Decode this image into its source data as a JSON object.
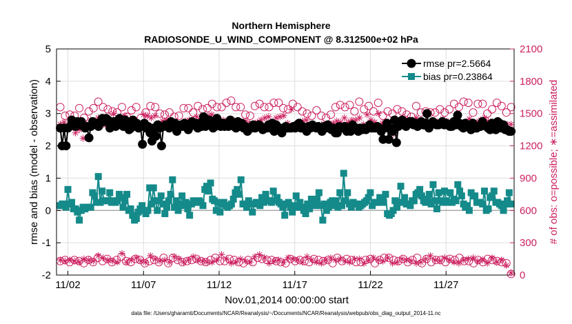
{
  "chart_data": {
    "type": "line",
    "title": "Northern Hemisphere",
    "subtitle": "RADIOSONDE_U_WIND_COMPONENT @ 8.312500e+02 hPa",
    "xlabel": "Nov.01,2014 00:00:00 start",
    "ylabel": "rmse and bias (model - observation)",
    "y2label": "# of obs: o=possible; ∗=assimilated",
    "x_ticks": [
      1.5,
      6.5,
      11.5,
      16.5,
      21.5,
      26.5
    ],
    "x_tick_labels": [
      "11/02",
      "11/07",
      "11/12",
      "11/17",
      "11/22",
      "11/27"
    ],
    "xlim": [
      0.75,
      31.0
    ],
    "ylim": [
      -2,
      5
    ],
    "y_ticks": [
      -2,
      -1,
      0,
      1,
      2,
      3,
      4,
      5
    ],
    "y_tick_labels": [
      "-2",
      "-1",
      "0",
      "1",
      "2",
      "3",
      "4",
      "5"
    ],
    "y2lim": [
      0,
      2100
    ],
    "y2_ticks": [
      0,
      300,
      600,
      900,
      1200,
      1500,
      1800,
      2100
    ],
    "y2_tick_labels": [
      "0",
      "300",
      "600",
      "900",
      "1200",
      "1500",
      "1800",
      "2100"
    ],
    "grid": true,
    "legend_position": "top-right",
    "colors": {
      "rmse": "#000000",
      "bias": "#158a8a",
      "obs": "#cc2060",
      "zero_line": "#aaaaaa",
      "grid": "#dddddd"
    },
    "series": [
      {
        "name": "rmse pr=2.5664",
        "axis": "left",
        "style": "line-filled-circle",
        "values": [
          2.55,
          2.0,
          2.55,
          2.0,
          2.55,
          2.6,
          2.8,
          2.7,
          2.6,
          2.75,
          2.65,
          2.75,
          2.6,
          2.55,
          2.6,
          2.25,
          2.6,
          2.75,
          2.7,
          2.7,
          2.6,
          2.7,
          2.85,
          2.75,
          2.85,
          2.8,
          2.55,
          2.6,
          2.75,
          2.6,
          2.75,
          2.85,
          2.75,
          2.6,
          2.8,
          2.65,
          2.5,
          2.55,
          2.8,
          2.65,
          2.7,
          2.55,
          2.6,
          2.05,
          2.7,
          2.55,
          2.6,
          2.4,
          2.15,
          2.55,
          2.3,
          2.65,
          2.55,
          2.0,
          2.6,
          2.65,
          2.6,
          2.55,
          2.75,
          2.65,
          2.7,
          2.45,
          2.6,
          2.65,
          2.6,
          2.7,
          2.65,
          2.5,
          2.6,
          2.75,
          2.65,
          2.7,
          2.55,
          2.7,
          2.6,
          2.9,
          2.6,
          2.65,
          2.8,
          2.65,
          2.55,
          2.6,
          2.85,
          2.65,
          2.6,
          2.7,
          2.6,
          2.7,
          2.6,
          2.8,
          2.7,
          2.6,
          2.55,
          2.75,
          2.6,
          2.7,
          2.55,
          2.6,
          2.45,
          2.55,
          2.55,
          2.65,
          2.55,
          2.6,
          2.65,
          2.6,
          2.5,
          2.55,
          2.55,
          2.65,
          2.55,
          2.7,
          2.45,
          2.65,
          2.5,
          2.55,
          2.4,
          2.55,
          2.6,
          2.55,
          2.55,
          2.55,
          2.6,
          2.55,
          2.65,
          2.7,
          2.55,
          2.6,
          2.55,
          2.45,
          2.6,
          2.55,
          2.65,
          2.6,
          2.55,
          2.6,
          2.55,
          2.45,
          2.6,
          2.55,
          2.65,
          2.55,
          2.5,
          2.55,
          2.4,
          2.4,
          2.6,
          2.55,
          2.55,
          2.6,
          2.45,
          2.55,
          2.45,
          2.65,
          2.55,
          2.55,
          2.45,
          2.55,
          2.5,
          2.55,
          2.5,
          2.55,
          2.65,
          2.55,
          2.55,
          2.55,
          2.6,
          2.55,
          2.45,
          2.2,
          2.55,
          2.7,
          2.2,
          2.55,
          2.45,
          2.8,
          2.1,
          2.6,
          2.65,
          2.8,
          2.7,
          2.6,
          2.7,
          2.75,
          2.75,
          2.65,
          2.7,
          2.6,
          2.7,
          2.75,
          2.65,
          2.7,
          3.0,
          2.55,
          2.65,
          2.75,
          2.7,
          2.65,
          2.65,
          2.7,
          2.75,
          2.65,
          2.7,
          2.65,
          2.6,
          2.6,
          2.75,
          2.65,
          2.95,
          2.7,
          2.6,
          2.55,
          2.7,
          2.65,
          2.6,
          2.5,
          2.7,
          2.55,
          2.55,
          2.6,
          2.6,
          2.75,
          2.65,
          2.6,
          2.55,
          2.5,
          2.7,
          2.6,
          2.5,
          2.75,
          2.7,
          2.55,
          2.65,
          2.5,
          2.5,
          2.45,
          2.45
        ]
      },
      {
        "name": "bias pr=0.23864",
        "axis": "left",
        "style": "line-filled-square",
        "values": [
          0.15,
          0.2,
          0.2,
          0.1,
          0.65,
          0.2,
          0.25,
          0.05,
          0.05,
          -0.05,
          -0.3,
          0.0,
          0.1,
          0.05,
          0.1,
          0.1,
          0.1,
          0.55,
          0.45,
          0.25,
          1.05,
          0.25,
          0.6,
          0.3,
          0.3,
          0.3,
          0.55,
          0.25,
          0.3,
          0.25,
          0.3,
          0.5,
          0.4,
          0.1,
          0.3,
          0.5,
          0.0,
          0.05,
          -0.15,
          -0.3,
          -0.25,
          -0.05,
          0.05,
          0.15,
          0.0,
          -0.1,
          0.0,
          0.7,
          0.2,
          0.7,
          0.3,
          0.0,
          0.3,
          0.45,
          0.2,
          -0.1,
          0.1,
          0.3,
          0.5,
          0.95,
          0.1,
          0.3,
          0.0,
          0.2,
          0.45,
          0.15,
          0.25,
          0.05,
          -0.15,
          0.2,
          0.3,
          0.25,
          0.25,
          0.3,
          0.25,
          0.15,
          0.65,
          0.75,
          0.6,
          0.85,
          0.35,
          0.3,
          0.0,
          0.25,
          -0.05,
          0.2,
          0.25,
          0.15,
          0.1,
          0.15,
          0.2,
          0.35,
          0.55,
          0.65,
          0.5,
          0.95,
          0.2,
          0.2,
          0.1,
          0.3,
          0.2,
          -0.05,
          0.2,
          0.25,
          0.25,
          0.15,
          0.4,
          0.25,
          0.5,
          0.3,
          0.3,
          0.25,
          0.6,
          0.3,
          0.4,
          0.25,
          0.2,
          0.1,
          -0.15,
          0.2,
          0.25,
          0.1,
          -0.05,
          0.15,
          0.45,
          0.1,
          0.25,
          0.1,
          0.0,
          -0.1,
          0.2,
          0.05,
          0.35,
          0.25,
          0.15,
          0.35,
          0.55,
          0.15,
          -0.3,
          0.2,
          0.0,
          0.1,
          0.25,
          0.3,
          0.15,
          0.3,
          0.1,
          0.55,
          0.15,
          1.15,
          0.3,
          0.55,
          0.2,
          0.1,
          0.25,
          0.2,
          0.2,
          0.1,
          0.15,
          0.2,
          0.25,
          0.3,
          0.4,
          0.55,
          0.15,
          0.25,
          0.25,
          0.25,
          0.4,
          0.35,
          0.25,
          0.5,
          -0.1,
          -0.15,
          -0.1,
          0.0,
          0.3,
          0.1,
          0.25,
          0.75,
          0.25,
          0.4,
          0.2,
          0.2,
          0.15,
          0.3,
          0.3,
          0.5,
          0.55,
          0.65,
          0.45,
          0.3,
          0.25,
          0.35,
          0.5,
          0.2,
          0.8,
          0.3,
          0.05,
          0.55,
          0.3,
          0.25,
          0.6,
          0.3,
          0.25,
          0.55,
          0.25,
          0.35,
          0.3,
          0.8,
          0.6,
          0.45,
          0.2,
          0.1,
          0.15,
          0.0,
          0.55,
          0.45,
          0.45,
          0.25,
          0.25,
          0.25,
          0.2,
          0.6,
          0.0,
          0.05,
          0.4,
          0.45,
          0.6,
          0.25,
          0.25,
          0.2,
          0.15,
          0.0,
          0.2,
          0.3,
          0.55,
          0.2
        ]
      },
      {
        "name": "obs possible (upper-air)",
        "axis": "right",
        "style": "open-circle",
        "values": [
          1560,
          1480,
          1490,
          1480,
          1550,
          1460,
          1520,
          1550,
          1610,
          1560,
          1540,
          1520,
          1510,
          1560,
          1470,
          1530,
          1560,
          1460,
          1510,
          1570,
          1560,
          1500,
          1490,
          1510,
          1470,
          1480,
          1550,
          1550,
          1510,
          1570,
          1540,
          1550,
          1590,
          1560,
          1560,
          1600,
          1620,
          1560,
          1560,
          1490,
          1480,
          1570,
          1590,
          1560,
          1560,
          1600,
          1600,
          1550,
          1540,
          1590,
          1560,
          1520,
          1500,
          1480,
          1530,
          1480,
          1460,
          1490,
          1560,
          1580,
          1560,
          1580,
          1520,
          1610,
          1540,
          1570,
          1520,
          1600,
          1480,
          1520,
          1500,
          1540,
          1520,
          1490,
          1470,
          1570,
          1510,
          1520,
          1510,
          1510,
          1540,
          1510,
          1540,
          1590,
          1560,
          1610,
          1600,
          1510,
          1590,
          1590,
          1500,
          1540,
          1600,
          1570,
          1510,
          1560
        ]
      },
      {
        "name": "obs assimilated (upper-air)",
        "axis": "right",
        "style": "asterisk",
        "values": [
          1400,
          1420,
          1370,
          1380,
          1320,
          1350,
          1270,
          1400,
          1440,
          1430,
          1460,
          1430,
          1390,
          1420,
          1500,
          1380,
          1440,
          1480,
          1420,
          1380,
          1400,
          1360,
          1490,
          1480,
          1460,
          1480,
          1410,
          1430,
          1440,
          1420,
          1420,
          1400,
          1380,
          1430,
          1440,
          1430,
          1470,
          1440,
          1420,
          1480,
          1490,
          1420,
          1410,
          1440,
          1420,
          1450,
          1430,
          1420,
          1390,
          1430,
          1410,
          1400,
          1420,
          1440,
          1460,
          1470,
          1410,
          1460,
          1470,
          1480,
          1410,
          1540,
          1380,
          1400,
          1430,
          1440,
          1370,
          1380,
          1370,
          1400,
          1390,
          1400,
          1410,
          1430,
          1420,
          1460,
          1420,
          1440,
          1440,
          1460,
          1400,
          1490,
          1440,
          1420,
          1500,
          1410,
          1420,
          1330,
          1310,
          1380,
          1440,
          1460,
          1420,
          1440,
          1460,
          1400,
          1380,
          1420,
          1400,
          1430,
          1410,
          1450,
          1430,
          1400,
          1380,
          1420,
          1410,
          1380,
          1450,
          1390,
          1420,
          1440,
          1460,
          1430,
          1420,
          1400,
          1420,
          1390,
          1400,
          1400
        ]
      },
      {
        "name": "obs possible (lower)",
        "axis": "right",
        "style": "open-circle",
        "values": [
          130,
          140,
          120,
          140,
          130,
          110,
          140,
          120,
          160,
          130,
          150,
          120,
          140,
          170,
          130,
          120,
          150,
          140,
          110,
          130,
          140,
          120,
          160,
          110,
          160,
          140,
          120,
          130,
          140,
          150,
          130,
          120,
          140,
          160,
          130,
          130,
          150,
          140,
          120,
          110,
          140,
          120,
          160,
          150,
          140,
          140,
          130,
          120,
          110,
          150,
          130,
          140,
          130,
          120,
          150,
          140,
          130,
          140,
          110,
          160,
          130,
          150,
          140,
          120,
          120,
          140,
          150,
          110,
          140,
          160,
          160,
          140,
          130,
          150,
          120,
          140,
          160,
          110,
          150,
          120,
          140,
          140,
          120,
          150,
          140,
          160,
          130,
          130,
          110,
          140,
          120,
          150,
          140,
          130,
          120,
          110,
          10
        ]
      },
      {
        "name": "obs assimilated (lower)",
        "axis": "right",
        "style": "asterisk",
        "values": [
          140,
          130,
          140,
          130,
          120,
          150,
          140,
          130,
          180,
          160,
          140,
          130,
          120,
          200,
          120,
          140,
          160,
          130,
          120,
          180,
          150,
          130,
          140,
          120,
          170,
          150,
          120,
          140,
          170,
          140,
          130,
          120,
          120,
          140,
          190,
          150,
          110,
          120,
          150,
          130,
          120,
          170,
          190,
          160,
          110,
          130,
          140,
          120,
          160,
          150,
          140,
          120,
          170,
          140,
          120,
          110,
          140,
          160,
          140,
          150,
          130,
          120,
          150,
          150,
          110,
          140,
          160,
          140,
          130,
          160,
          110,
          120,
          150,
          140,
          130,
          110,
          120,
          150,
          180,
          140,
          130,
          160,
          140,
          120,
          110,
          140,
          150,
          160,
          130,
          140,
          110,
          160,
          120,
          140,
          90,
          20
        ]
      }
    ]
  },
  "footnote": "data file: /Users/gharamti/Documents/NCAR/Reanalysis/~/Documents/NCAR/Reanalysis/webpub/obs_diag_output_2014-11.nc"
}
